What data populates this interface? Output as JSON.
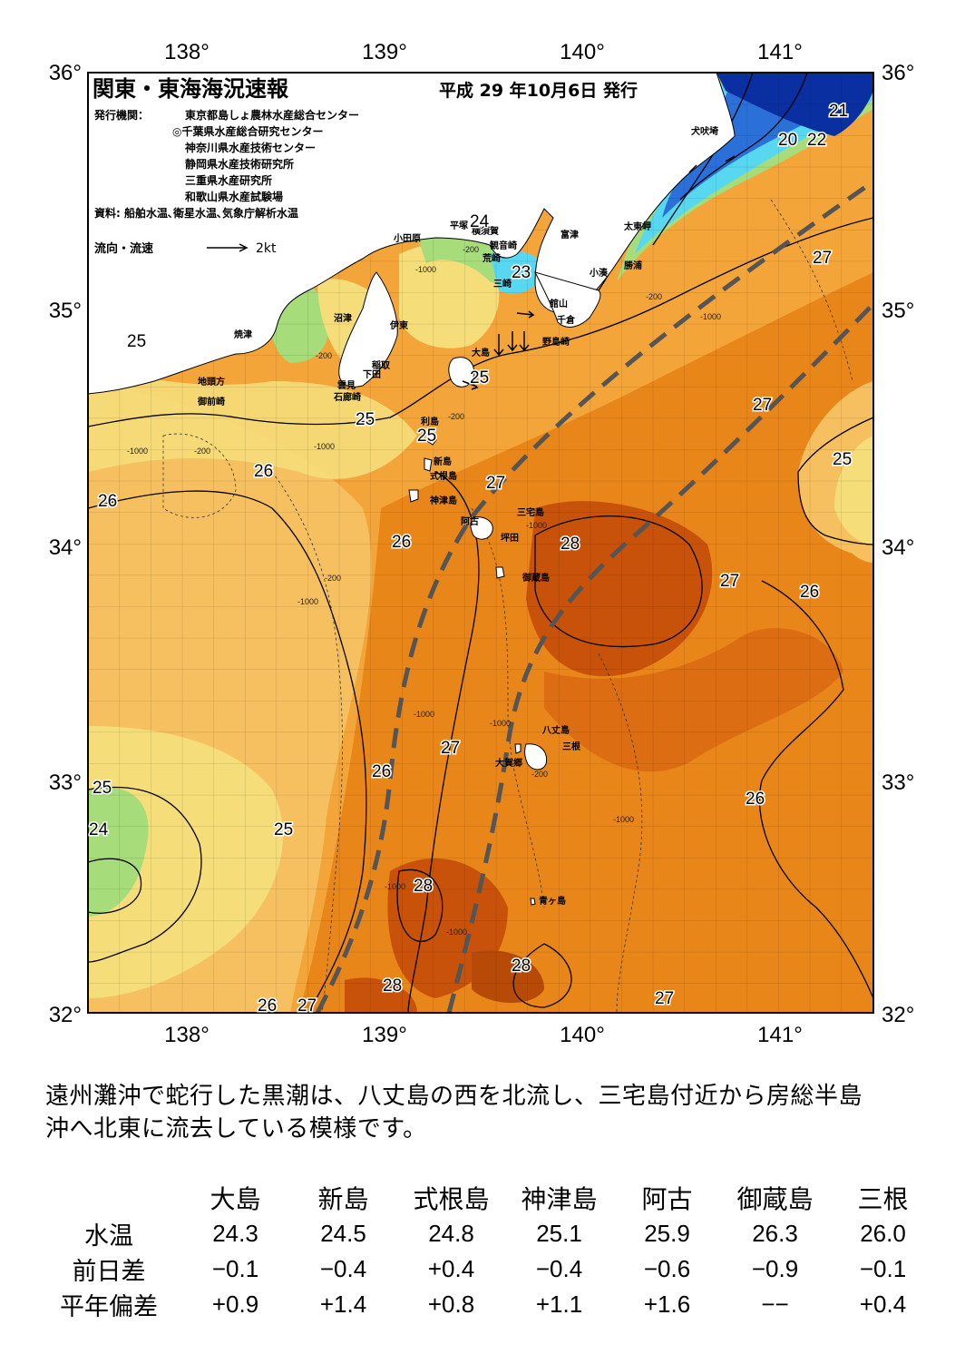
{
  "header": {
    "title": "関東・東海海況速報",
    "issue_date": "平成 29 年10月6日 発行",
    "issuer_label": "発行機関：",
    "issuers": [
      "東京都島しょ農林水産総合センター",
      "◎千葉県水産総合研究センター",
      "神奈川県水産技術センター",
      "静岡県水産技術研究所",
      "三重県水産研究所",
      "和歌山県水産試験場"
    ],
    "source": "資料: 船舶水温､衛星水温､気象庁解析水温",
    "current_legend": "流向・流速",
    "current_scale": "2kt"
  },
  "axes": {
    "lon_labels": [
      "138°",
      "139°",
      "140°",
      "141°"
    ],
    "lat_labels": [
      "36°",
      "35°",
      "34°",
      "33°",
      "32°"
    ]
  },
  "place_names": {
    "inubozaki": "犬吠埼",
    "taito": "太東岬",
    "katsuura": "勝浦",
    "kominato": "小湊",
    "tomiura": "富津",
    "tateyama": "館山",
    "chikura": "千倉",
    "nojimazaki": "野島崎",
    "hiratsuka": "平塚",
    "yokosuka": "横須賀",
    "kannonzaki": "観音崎",
    "arasaki": "荒崎",
    "misaki": "三崎",
    "odawara": "小田原",
    "numazu": "沼津",
    "ito": "伊東",
    "inatori": "稲取",
    "shimoda": "下田",
    "kumomi": "雲見",
    "irozaki": "石廊崎",
    "yaizu": "焼津",
    "jitokata": "地頭方",
    "omaezaki": "御前崎",
    "oshima": "大島",
    "toshima": "利島",
    "niijima": "新島",
    "shikinejima": "式根島",
    "kozushima": "神津島",
    "miyakejima": "三宅島",
    "ako": "阿古",
    "tsubota": "坪田",
    "mikurajima": "御蔵島",
    "hachijojima": "八丈島",
    "mitsune": "三根",
    "okago": "大賀郷",
    "aogashima": "青ヶ島"
  },
  "isotherm_labels": [
    "21",
    "20",
    "22",
    "24",
    "23",
    "27",
    "25",
    "25",
    "25",
    "25",
    "26",
    "26",
    "26",
    "27",
    "28",
    "27",
    "27",
    "25",
    "26",
    "27",
    "26",
    "26",
    "25",
    "24",
    "25",
    "28",
    "28",
    "26",
    "27",
    "27"
  ],
  "depth_labels": [
    "-200",
    "-1000"
  ],
  "summary_lines": [
    "遠州灘沖で蛇行した黒潮は、八丈島の西を北流し、三宅島付近から房総半島",
    "沖へ北東に流去している模様です。"
  ],
  "table": {
    "columns": [
      "大島",
      "新島",
      "式根島",
      "神津島",
      "阿古",
      "御蔵島",
      "三根"
    ],
    "rows": [
      {
        "label": "水温",
        "values": [
          "24.3",
          "24.5",
          "24.8",
          "25.1",
          "25.9",
          "26.3",
          "26.0"
        ]
      },
      {
        "label": "前日差",
        "values": [
          "−0.1",
          "−0.4",
          "+0.4",
          "−0.4",
          "−0.6",
          "−0.9",
          "−0.1"
        ]
      },
      {
        "label": "平年偏差",
        "values": [
          "+0.9",
          "+1.4",
          "+0.8",
          "+1.1",
          "+1.6",
          "−−",
          "+0.4"
        ]
      }
    ]
  },
  "colors": {
    "deep_orange": "#c8520a",
    "orange": "#e8861a",
    "light_orange": "#f4a53a",
    "yellow_orange": "#f6c060",
    "yellow": "#f5dd7a",
    "green": "#a7dc7a",
    "cyan": "#58d8f0",
    "blue": "#2a70d8",
    "navy": "#0a2fa0",
    "kuroshio_axis": "#555555"
  }
}
